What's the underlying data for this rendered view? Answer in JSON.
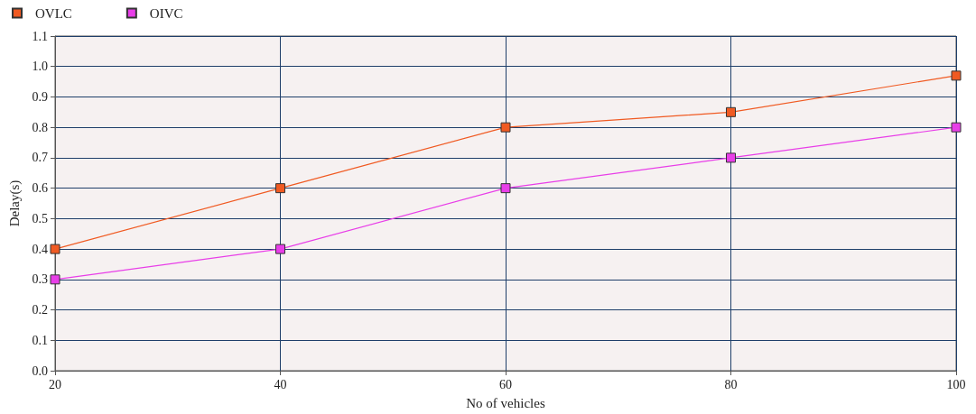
{
  "chart_data": {
    "type": "line",
    "xlabel": "No of vehicles",
    "ylabel": "Delay(s)",
    "x": [
      20,
      40,
      60,
      80,
      100
    ],
    "series": [
      {
        "name": "OVLC",
        "color": "#f05a22",
        "values": [
          0.4,
          0.6,
          0.8,
          0.85,
          0.97
        ]
      },
      {
        "name": "OIVC",
        "color": "#e83ee8",
        "values": [
          0.3,
          0.4,
          0.6,
          0.7,
          0.8
        ]
      }
    ],
    "xlim": [
      20,
      100
    ],
    "xticks": [
      20,
      40,
      60,
      80,
      100
    ],
    "ylim": [
      0,
      1.1
    ],
    "yticks": [
      {
        "value": 0,
        "label": "0.0"
      },
      0.1,
      0.2,
      0.3,
      0.4,
      0.5,
      0.6,
      0.7,
      0.8,
      0.9,
      {
        "value": 1,
        "label": "1.0"
      },
      1.1
    ],
    "grid": true,
    "legend": "top left",
    "marker": "square",
    "line_style": "solid"
  }
}
